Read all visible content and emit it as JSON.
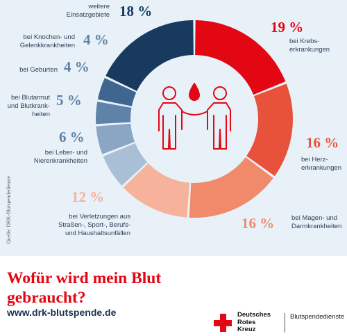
{
  "headline": "Wofür wird mein Blut gebraucht?",
  "website": "www.drk-blutspende.de",
  "source_note": "Quelle: DRK-Blutspendedienste",
  "logo": {
    "org_name_lines": [
      "Deutsches",
      "Rotes",
      "Kreuz"
    ],
    "service": "Blutspendedienste",
    "cross_color": "#e30613"
  },
  "center_icon": "two-people-sharing-blood-drop-icon",
  "chart_data": {
    "type": "pie",
    "style": "donut",
    "title": "Wofür wird mein Blut gebraucht?",
    "unit": "%",
    "slices": [
      {
        "label": "bei Krebserkrankungen",
        "label_lines": [
          "bei Krebs-",
          "erkrankungen"
        ],
        "value": 19,
        "display": "19 %",
        "color": "#e30613"
      },
      {
        "label": "bei Herzerkrankungen",
        "label_lines": [
          "bei Herz-",
          "erkrankungen"
        ],
        "value": 16,
        "display": "16 %",
        "color": "#e8523a"
      },
      {
        "label": "bei Magen- und Darmkrankheiten",
        "label_lines": [
          "bei Magen- und",
          "Darmkrankheiten"
        ],
        "value": 16,
        "display": "16 %",
        "color": "#f08a6a"
      },
      {
        "label": "bei Verletzungen aus Straßen-, Sport-, Berufs- und Haushaltsunfällen",
        "label_lines": [
          "bei Verletzungen aus",
          "Straßen-, Sport-, Berufs-",
          "und Haushaltsunfällen"
        ],
        "value": 12,
        "display": "12 %",
        "color": "#f6b29a"
      },
      {
        "label": "bei Leber- und Nierenkrankheiten",
        "label_lines": [
          "bei Leber- und",
          "Nierenkrankheiten"
        ],
        "value": 6,
        "display": "6 %",
        "color": "#a9bfd6"
      },
      {
        "label": "bei Blutarmut und Blutkrankheiten",
        "label_lines": [
          "bei Blutarmut",
          "und Blutkrank-",
          "heiten"
        ],
        "value": 5,
        "display": "5 %",
        "color": "#8aa6c4"
      },
      {
        "label": "bei Geburten",
        "label_lines": [
          "bei Geburten"
        ],
        "value": 4,
        "display": "4 %",
        "color": "#5f82a8"
      },
      {
        "label": "bei Knochen- und Gelenkkrankheiten",
        "label_lines": [
          "bei Knochen- und",
          "Gelenkkrankheiten"
        ],
        "value": 4,
        "display": "4 %",
        "color": "#3e6690"
      },
      {
        "label": "weitere Einsatzgebiete",
        "label_lines": [
          "weitere",
          "Einsatzgebiete"
        ],
        "value": 18,
        "display": "18 %",
        "color": "#173a5e"
      }
    ]
  }
}
